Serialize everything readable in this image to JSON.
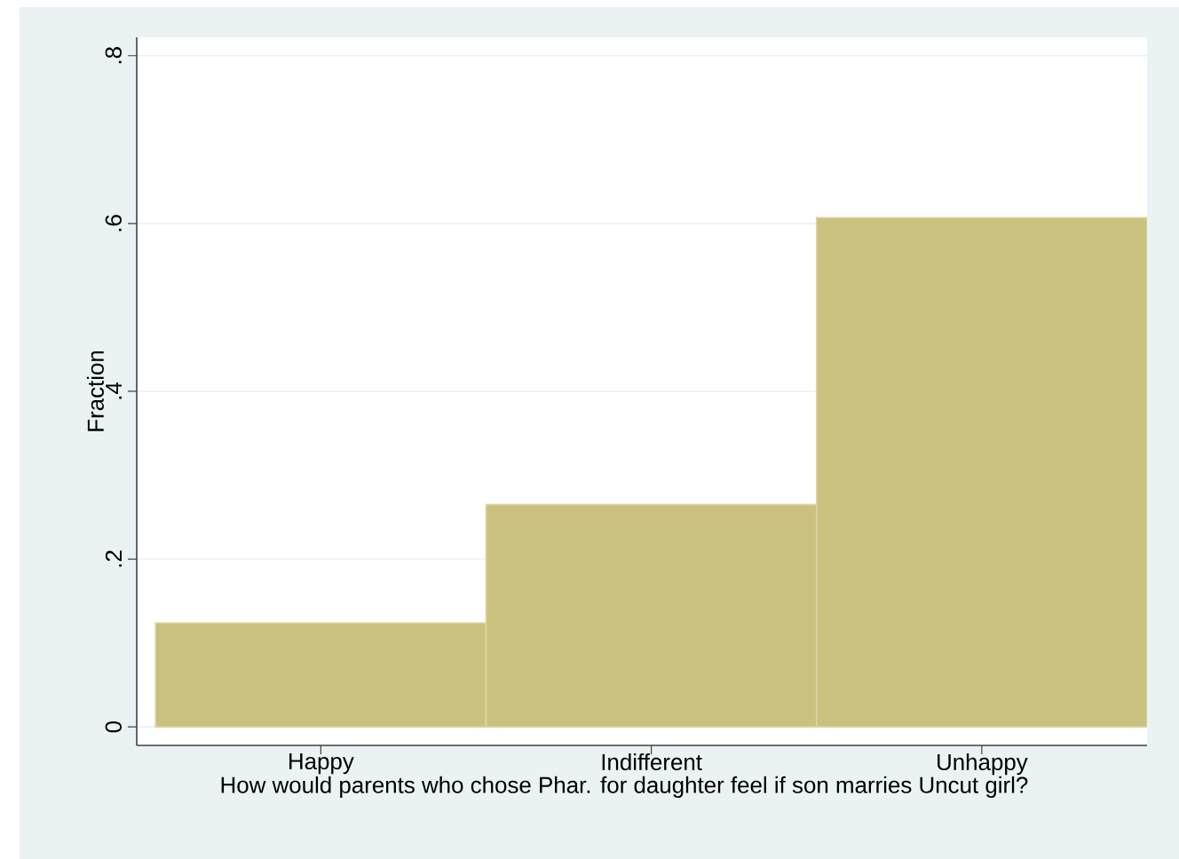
{
  "chart_data": {
    "type": "bar",
    "xlabel": "How would parents who chose Phar. for daughter feel if son marries Uncut girl?",
    "ylabel": "Fraction",
    "categories": [
      "Happy",
      "Indifferent",
      "Unhappy"
    ],
    "values": [
      0.124,
      0.265,
      0.607
    ],
    "color": "#cbc17f",
    "ylim": [
      -0.022,
      0.822
    ],
    "yticks": [
      {
        "value": 0,
        "label": "0"
      },
      {
        "value": 0.2,
        "label": ".2"
      },
      {
        "value": 0.4,
        "label": ".4"
      },
      {
        "value": 0.6,
        "label": ".6"
      },
      {
        "value": 0.8,
        "label": ".8"
      }
    ],
    "grid": "y"
  }
}
